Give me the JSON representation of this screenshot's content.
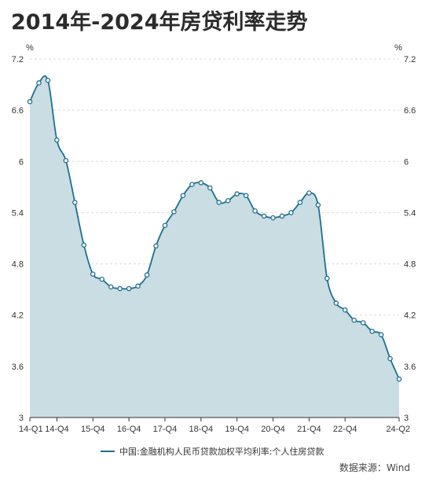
{
  "title": "2014年-2024年房贷利率走势",
  "source": "数据来源：Wind",
  "colors": {
    "line": "#1e6f8f",
    "fill": "#c9dde3",
    "grid": "#d9d9d9",
    "marker_fill": "#ffffff"
  },
  "chart_data": {
    "type": "area",
    "title": "2014年-2024年房贷利率走势",
    "ylabel_left": "%",
    "ylabel_right": "%",
    "ylim": [
      3,
      7.2
    ],
    "yticks": [
      3,
      3.6,
      4.2,
      4.8,
      5.4,
      6,
      6.6,
      7.2
    ],
    "ytick_labels": [
      "3",
      "3.6",
      "4.2",
      "4.8",
      "5.4",
      "6",
      "6.6",
      "7.2"
    ],
    "xtick_labels": [
      "14-Q1",
      "14-Q4",
      "15-Q4",
      "16-Q4",
      "17-Q4",
      "18-Q4",
      "19-Q4",
      "20-Q4",
      "21-Q4",
      "22-Q4",
      "24-Q2"
    ],
    "xtick_positions": [
      "14-Q1",
      "14-Q4",
      "15-Q4",
      "16-Q4",
      "17-Q4",
      "18-Q4",
      "19-Q4",
      "20-Q4",
      "21-Q4",
      "22-Q4",
      "24-Q2"
    ],
    "grid": true,
    "legend_position": "bottom",
    "series": [
      {
        "name": "中国:金融机构人民币贷款加权平均利率:个人住房贷款",
        "x": [
          "14-Q1",
          "14-Q2",
          "14-Q3",
          "14-Q4",
          "15-Q1",
          "15-Q2",
          "15-Q3",
          "15-Q4",
          "16-Q1",
          "16-Q2",
          "16-Q3",
          "16-Q4",
          "17-Q1",
          "17-Q2",
          "17-Q3",
          "17-Q4",
          "18-Q1",
          "18-Q2",
          "18-Q3",
          "18-Q4",
          "19-Q1",
          "19-Q2",
          "19-Q3",
          "19-Q4",
          "20-Q1",
          "20-Q2",
          "20-Q3",
          "20-Q4",
          "21-Q1",
          "21-Q2",
          "21-Q3",
          "21-Q4",
          "22-Q1",
          "22-Q2",
          "22-Q3",
          "22-Q4",
          "23-Q1",
          "23-Q2",
          "23-Q3",
          "23-Q4",
          "24-Q1",
          "24-Q2"
        ],
        "values": [
          6.7,
          6.92,
          6.95,
          6.25,
          6.01,
          5.52,
          5.02,
          4.68,
          4.62,
          4.53,
          4.51,
          4.51,
          4.54,
          4.67,
          5.01,
          5.25,
          5.41,
          5.6,
          5.73,
          5.75,
          5.69,
          5.52,
          5.54,
          5.62,
          5.6,
          5.42,
          5.36,
          5.34,
          5.36,
          5.4,
          5.52,
          5.63,
          5.49,
          4.63,
          4.34,
          4.26,
          4.14,
          4.11,
          4.01,
          3.97,
          3.69,
          3.45
        ]
      }
    ]
  }
}
